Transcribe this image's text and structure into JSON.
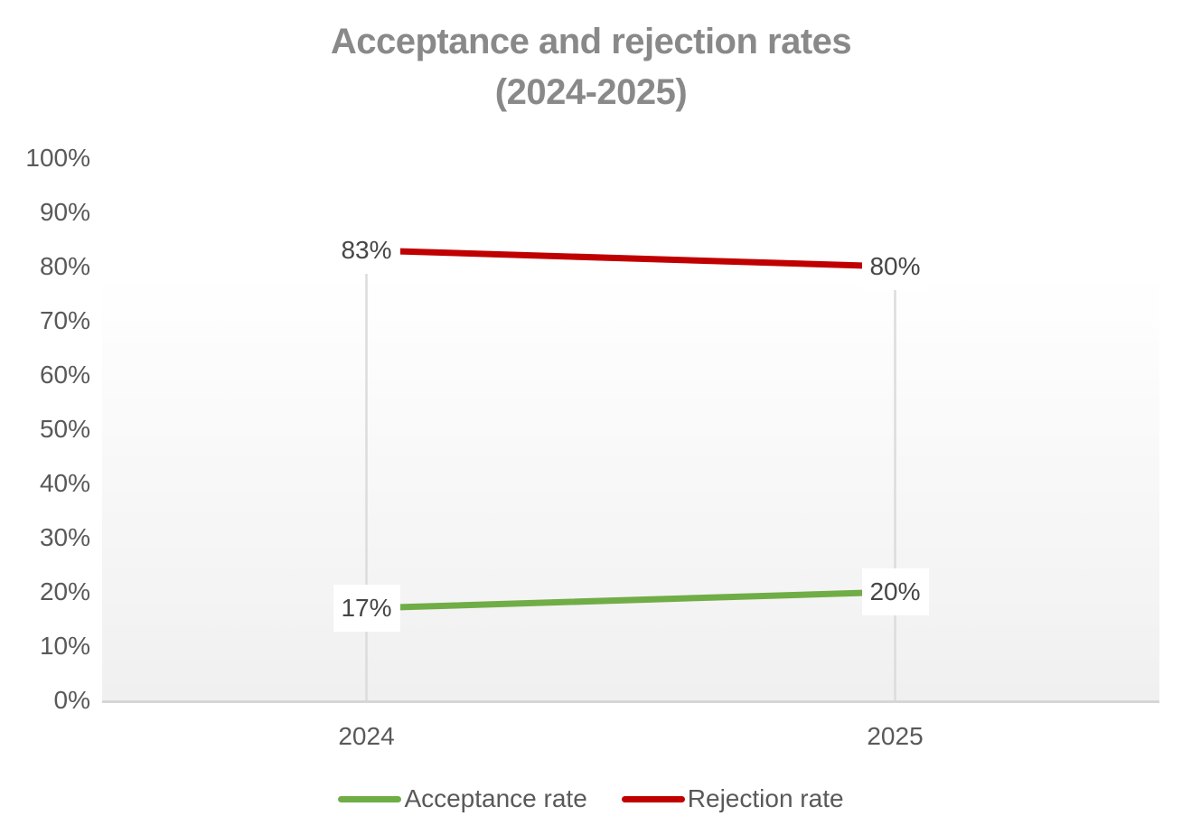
{
  "chart_data": {
    "type": "line",
    "title": "Acceptance and rejection rates",
    "subtitle": "(2024-2025)",
    "categories": [
      "2024",
      "2025"
    ],
    "series": [
      {
        "name": "Acceptance rate",
        "values": [
          17,
          20
        ],
        "point_labels": [
          "17%",
          "20%"
        ],
        "color": "#70AD47"
      },
      {
        "name": "Rejection rate",
        "values": [
          83,
          80
        ],
        "point_labels": [
          "83%",
          "80%"
        ],
        "color": "#C00000"
      }
    ],
    "y_axis": {
      "min": 0,
      "max": 100,
      "step": 10,
      "tick_labels": [
        "0%",
        "10%",
        "20%",
        "30%",
        "40%",
        "50%",
        "60%",
        "70%",
        "80%",
        "90%",
        "100%"
      ]
    },
    "x_axis": {
      "labels": [
        "2024",
        "2025"
      ]
    },
    "legend": {
      "position": "bottom",
      "entries": [
        "Acceptance rate",
        "Rejection rate"
      ]
    },
    "gridlines": "vertical drop lines from data points to category axis",
    "colors": {
      "title_text": "#898989",
      "axis_text": "#595959",
      "data_label_text": "#464646",
      "data_label_bg": "#FFFFFF",
      "drop_line": "#DCDCDC",
      "axis_line": "#D6D6D6",
      "plot_fill_top": "#FFFFFF",
      "plot_fill_bottom": "#F0F0F0"
    }
  }
}
